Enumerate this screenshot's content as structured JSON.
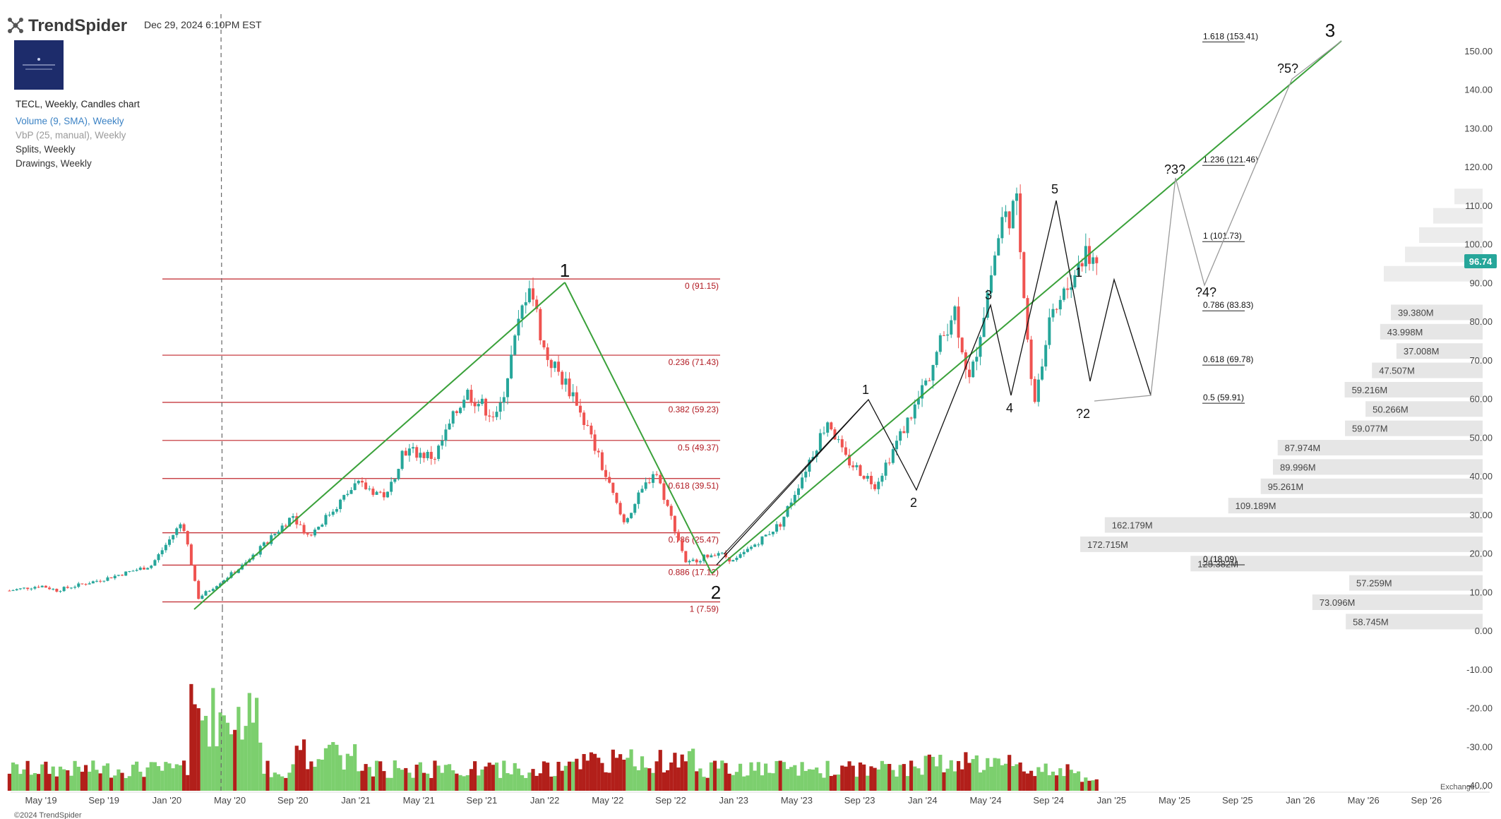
{
  "header": {
    "brand": "TrendSpider",
    "date": "Dec 29, 2024 6:10PM EST"
  },
  "legend": {
    "title": "TECL, Weekly, Candles chart",
    "items": [
      {
        "label": "Volume (9, SMA), Weekly",
        "color": "#3b82c4"
      },
      {
        "label": "VbP (25, manual), Weekly",
        "color": "#9a9a9a"
      },
      {
        "label": "Splits, Weekly",
        "color": "#333333"
      },
      {
        "label": "Drawings, Weekly",
        "color": "#333333"
      }
    ]
  },
  "footer": {
    "copyright": "©2024 TrendSpider",
    "exchange": "Exchange: ..."
  },
  "last_price": {
    "value": 96.74,
    "label": "96.74",
    "color": "#26a69a"
  },
  "chart_data": {
    "type": "candlestick",
    "ticker": "TECL",
    "timeframe": "Weekly",
    "x_ticks": [
      "May '19",
      "Sep '19",
      "Jan '20",
      "May '20",
      "Sep '20",
      "Jan '21",
      "May '21",
      "Sep '21",
      "Jan '22",
      "May '22",
      "Sep '22",
      "Jan '23",
      "May '23",
      "Sep '23",
      "Jan '24",
      "May '24",
      "Sep '24",
      "Jan '25",
      "May '25",
      "Sep '25",
      "Jan '26",
      "May '26",
      "Sep '26"
    ],
    "y_ticks": [
      "150.00",
      "140.00",
      "130.00",
      "120.00",
      "110.00",
      "100.00",
      "90.00",
      "80.00",
      "70.00",
      "60.00",
      "50.00",
      "40.00",
      "30.00",
      "20.00",
      "10.00",
      "0.00",
      "-10.00",
      "-20.00",
      "-30.00",
      "-40.00"
    ],
    "ylim": [
      -40,
      155
    ],
    "price_keypoints": [
      [
        "2019-03",
        10.5
      ],
      [
        "2019-05",
        11.8
      ],
      [
        "2019-06",
        10.6
      ],
      [
        "2019-09",
        13.5
      ],
      [
        "2019-12",
        17.0
      ],
      [
        "2020-02",
        28.5
      ],
      [
        "2020-03",
        8.6
      ],
      [
        "2020-06",
        17.5
      ],
      [
        "2020-09",
        30.0
      ],
      [
        "2020-10",
        24.5
      ],
      [
        "2021-01",
        38.0
      ],
      [
        "2021-03",
        35.0
      ],
      [
        "2021-04",
        47.0
      ],
      [
        "2021-06",
        45.0
      ],
      [
        "2021-08",
        62.0
      ],
      [
        "2021-10",
        55.0
      ],
      [
        "2021-12",
        91.15
      ],
      [
        "2022-01",
        72.0
      ],
      [
        "2022-03",
        60.0
      ],
      [
        "2022-06",
        28.0
      ],
      [
        "2022-08",
        42.0
      ],
      [
        "2022-10",
        17.5
      ],
      [
        "2022-12",
        20.5
      ],
      [
        "2023-01",
        18.0
      ],
      [
        "2023-04",
        28.0
      ],
      [
        "2023-07",
        55.0
      ],
      [
        "2023-08",
        45.0
      ],
      [
        "2023-10",
        38.0
      ],
      [
        "2024-01",
        62.0
      ],
      [
        "2024-03",
        84.0
      ],
      [
        "2024-04",
        64.0
      ],
      [
        "2024-06",
        106.0
      ],
      [
        "2024-07",
        110.0
      ],
      [
        "2024-08",
        58.0
      ],
      [
        "2024-09",
        78.0
      ],
      [
        "2024-11",
        96.0
      ],
      [
        "2024-12",
        96.74
      ]
    ],
    "fib_retracement": {
      "levels": [
        {
          "label": "0 (91.15)",
          "price": 91.15
        },
        {
          "label": "0.236 (71.43)",
          "price": 71.43
        },
        {
          "label": "0.382 (59.23)",
          "price": 59.23
        },
        {
          "label": "0.5 (49.37)",
          "price": 49.37
        },
        {
          "label": "0.618 (39.51)",
          "price": 39.51
        },
        {
          "label": "0.786 (25.47)",
          "price": 25.47
        },
        {
          "label": "0.886 (17.12)",
          "price": 17.12
        },
        {
          "label": "1 (7.59)",
          "price": 7.59
        }
      ]
    },
    "fib_extension": {
      "levels": [
        {
          "label": "1.618 (153.41)",
          "price": 153.41
        },
        {
          "label": "1.236 (121.46)",
          "price": 121.46
        },
        {
          "label": "1 (101.73)",
          "price": 101.73
        },
        {
          "label": "0.786 (83.83)",
          "price": 83.83
        },
        {
          "label": "0.618 (69.78)",
          "price": 69.78
        },
        {
          "label": "0.5 (59.91)",
          "price": 59.91
        },
        {
          "label": "0 (18.09)",
          "price": 18.09
        }
      ]
    },
    "wave_labels": [
      "1",
      "2",
      "1",
      "2",
      "3",
      "4",
      "5",
      "1",
      "?2",
      "?3?",
      "?4?",
      "?5?",
      "3"
    ],
    "volume_by_price": [
      {
        "price": 80,
        "label": "39.380M"
      },
      {
        "price": 75,
        "label": "43.998M"
      },
      {
        "price": 70,
        "label": "37.008M"
      },
      {
        "price": 65,
        "label": "47.507M"
      },
      {
        "price": 60,
        "label": "59.216M"
      },
      {
        "price": 55,
        "label": "50.266M"
      },
      {
        "price": 50,
        "label": "59.077M"
      },
      {
        "price": 45,
        "label": "87.974M"
      },
      {
        "price": 40,
        "label": "89.996M"
      },
      {
        "price": 35,
        "label": "95.261M"
      },
      {
        "price": 30,
        "label": "109.189M"
      },
      {
        "price": 25,
        "label": "162.179M"
      },
      {
        "price": 20,
        "label": "172.715M"
      },
      {
        "price": 15,
        "label": "125.382M"
      },
      {
        "price": 10,
        "label": "57.259M"
      },
      {
        "price": 5,
        "label": "73.096M"
      },
      {
        "price": 0,
        "label": "58.745M"
      }
    ]
  }
}
